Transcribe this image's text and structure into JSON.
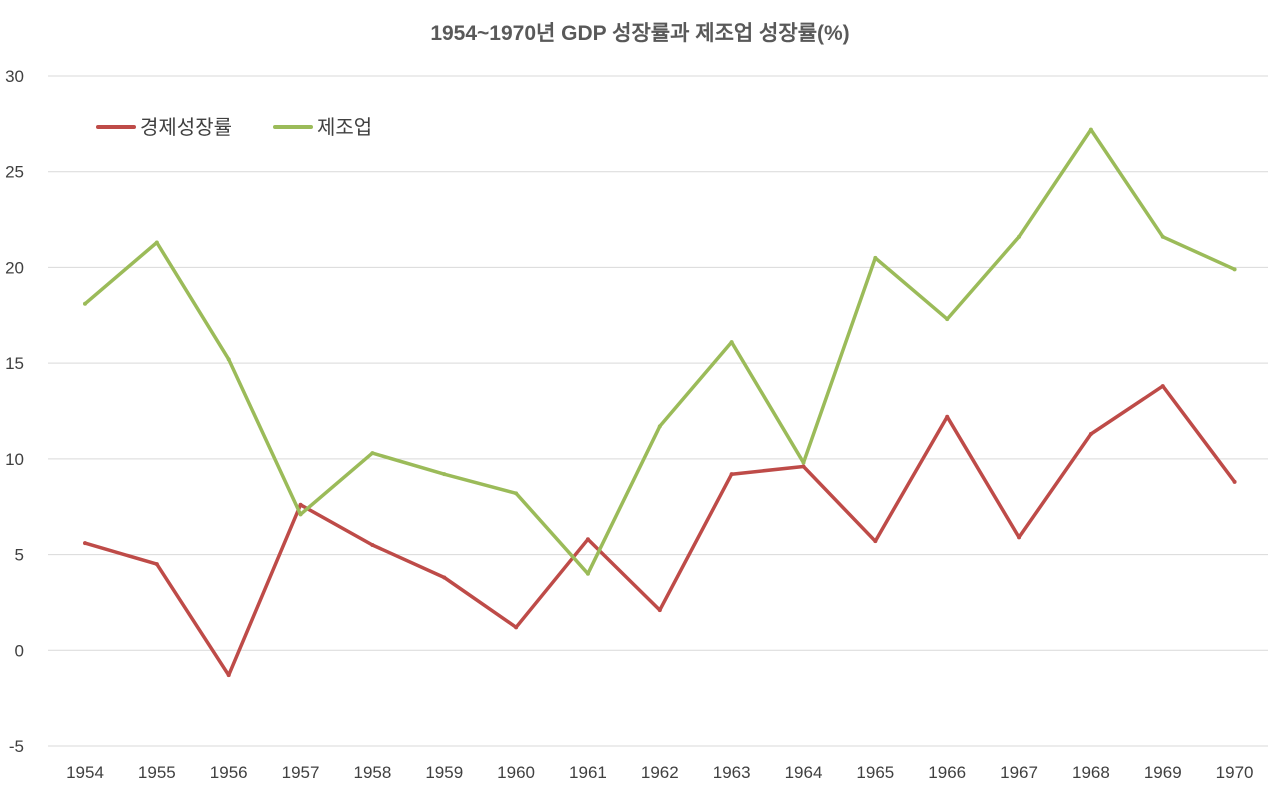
{
  "chart_data": {
    "type": "line",
    "title": "1954~1970년 GDP 성장률과 제조업 성장률(%)",
    "xlabel": "",
    "ylabel": "",
    "categories": [
      "1954",
      "1955",
      "1956",
      "1957",
      "1958",
      "1959",
      "1960",
      "1961",
      "1962",
      "1963",
      "1964",
      "1965",
      "1966",
      "1967",
      "1968",
      "1969",
      "1970"
    ],
    "ylim": [
      -5,
      30
    ],
    "yticks": [
      "30",
      "25",
      "20",
      "15",
      "10",
      "5",
      "0",
      "-5"
    ],
    "ytick_values": [
      30,
      25,
      20,
      15,
      10,
      5,
      0,
      -5
    ],
    "negative_tick_color": "#c00000",
    "grid": true,
    "legend_position": "top-left",
    "series": [
      {
        "name": "경제성장률",
        "color": "#be4b48",
        "values": [
          5.6,
          4.5,
          -1.3,
          7.6,
          5.5,
          3.8,
          1.2,
          5.8,
          2.1,
          9.2,
          9.6,
          5.7,
          12.2,
          5.9,
          11.3,
          13.8,
          8.8
        ]
      },
      {
        "name": "제조업",
        "color": "#9bbb59",
        "values": [
          18.1,
          21.3,
          15.2,
          7.1,
          10.3,
          9.2,
          8.2,
          4.0,
          11.7,
          16.1,
          9.8,
          20.5,
          17.3,
          21.6,
          27.2,
          21.6,
          19.9
        ]
      }
    ]
  }
}
